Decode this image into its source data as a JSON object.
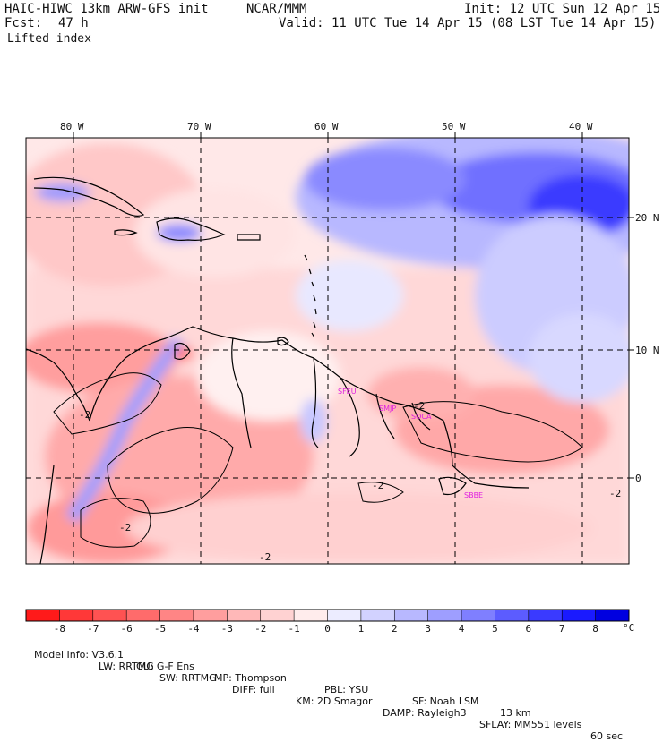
{
  "header": {
    "model_title": "HAIC-HIWC 13km ARW-GFS init",
    "org": "NCAR/MMM",
    "init": "Init: 12 UTC Sun 12 Apr 15",
    "fcst_label": "Fcst:",
    "fcst_value": "47 h",
    "valid": "Valid: 11 UTC Tue 14 Apr 15 (08 LST Tue 14 Apr 15)",
    "field": "Lifted index"
  },
  "map": {
    "lon_labels": [
      "80 W",
      "70 W",
      "60 W",
      "50 W",
      "40 W"
    ],
    "lat_labels": [
      "20 N",
      "10 N",
      "0"
    ],
    "contour_labels": [
      "-2",
      "-2",
      "-2",
      "-2",
      "-2",
      "-2"
    ],
    "stations": [
      "SFEU",
      "SMJP",
      "SOCA",
      "SBBE"
    ]
  },
  "colorbar": {
    "ticks": [
      "-8",
      "-7",
      "-6",
      "-5",
      "-4",
      "-3",
      "-2",
      "-1",
      "0",
      "1",
      "2",
      "3",
      "4",
      "5",
      "6",
      "7",
      "8"
    ],
    "unit": "°C",
    "colors": [
      "#ff1a1a",
      "#ff3838",
      "#ff5252",
      "#ff6b6b",
      "#ff8585",
      "#ff9e9e",
      "#ffb8b8",
      "#ffd2d2",
      "#ffecec",
      "#ececff",
      "#d2d2ff",
      "#b8b8ff",
      "#9e9eff",
      "#7f7fff",
      "#5c5cff",
      "#3a3aff",
      "#1a1aff",
      "#0000e0"
    ]
  },
  "footer": {
    "line1": [
      "Model Info: V3.6.1",
      "CU: G-F Ens",
      "MP: Thompson",
      "PBL: YSU",
      "SF: Noah LSM",
      "13 km",
      "51 levels",
      "60 sec"
    ],
    "line2": [
      "LW: RRTMG",
      "SW: RRTMG",
      "DIFF: full",
      "KM: 2D Smagor",
      "DAMP: Rayleigh3",
      "SFLAY: MM5"
    ]
  }
}
